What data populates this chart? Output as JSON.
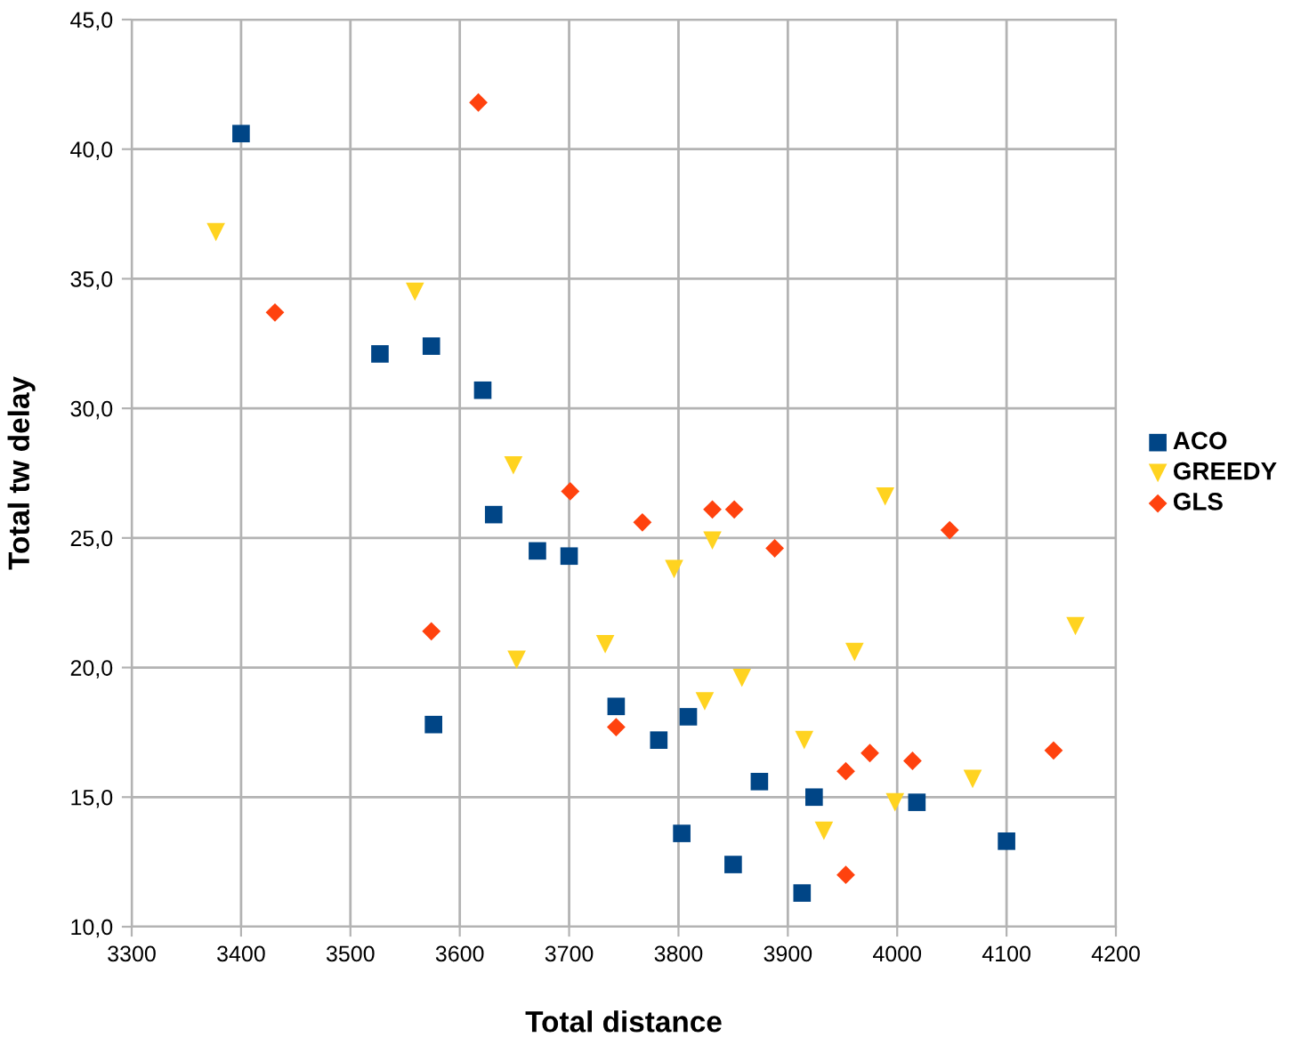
{
  "chart_data": {
    "type": "scatter",
    "xlabel": "Total distance",
    "ylabel": "Total tw delay",
    "xlim": [
      3300,
      4200
    ],
    "xticks": [
      3300,
      3400,
      3500,
      3600,
      3700,
      3800,
      3900,
      4000,
      4100,
      4200
    ],
    "ylim": [
      10,
      45
    ],
    "yticks": [
      {
        "value": 10,
        "label": "10,0"
      },
      {
        "value": 15,
        "label": "15,0"
      },
      {
        "value": 20,
        "label": "20,0"
      },
      {
        "value": 25,
        "label": "25,0"
      },
      {
        "value": 30,
        "label": "30,0"
      },
      {
        "value": 35,
        "label": "35,0"
      },
      {
        "value": 40,
        "label": "40,0"
      },
      {
        "value": 45,
        "label": "45,0"
      }
    ],
    "grid": true,
    "legend": "right",
    "series": [
      {
        "name": "ACO",
        "color": "#004586",
        "marker": "square",
        "x": [
          3400,
          3527,
          3574,
          3621,
          3631,
          3671,
          3700,
          3576,
          3743,
          3782,
          3809,
          3803,
          3850,
          3874,
          3924,
          3913,
          4018,
          4100
        ],
        "values": [
          40.6,
          32.1,
          32.4,
          30.7,
          25.9,
          24.5,
          24.3,
          17.8,
          18.5,
          17.2,
          18.1,
          13.6,
          12.4,
          15.6,
          15.0,
          11.3,
          14.8,
          13.3
        ]
      },
      {
        "name": "GREEDY",
        "color": "#ffd320",
        "marker": "triangle",
        "x": [
          3377,
          3559,
          3649,
          3652,
          3733,
          3796,
          3831,
          3824,
          3858,
          3915,
          3933,
          3961,
          3989,
          3998,
          4069,
          4163
        ],
        "values": [
          36.8,
          34.5,
          27.8,
          20.3,
          20.9,
          23.8,
          24.9,
          18.7,
          19.6,
          17.2,
          13.7,
          20.6,
          26.6,
          14.8,
          15.7,
          21.6
        ]
      },
      {
        "name": "GLS",
        "color": "#ff420e",
        "marker": "diamond",
        "x": [
          3617,
          3431,
          3701,
          3574,
          3767,
          3831,
          3851,
          3888,
          4048,
          3743,
          3953,
          3975,
          4014,
          4143,
          3953
        ],
        "values": [
          41.8,
          33.7,
          26.8,
          21.4,
          25.6,
          26.1,
          26.1,
          24.6,
          25.3,
          17.7,
          16.0,
          16.7,
          16.4,
          16.8,
          12.0
        ]
      }
    ]
  }
}
